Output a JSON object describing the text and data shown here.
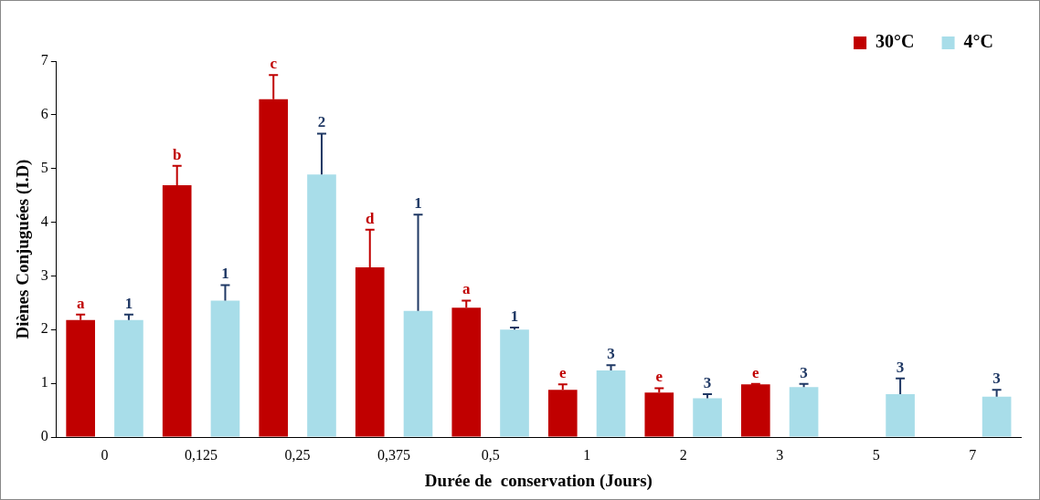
{
  "chart_data": {
    "type": "bar",
    "xlabel": "Durée de  conservation (Jours)",
    "ylabel": "Diènes Conjuguées (I.D)",
    "categories": [
      "0",
      "0,125",
      "0,25",
      "0,375",
      "0,5",
      "1",
      "2",
      "3",
      "5",
      "7"
    ],
    "series": [
      {
        "name": "30°C",
        "color": "#c00000",
        "values": [
          2.18,
          4.69,
          6.29,
          3.16,
          2.41,
          0.88,
          0.83,
          0.98,
          null,
          null
        ],
        "errors": [
          [
            2.18,
            2.28
          ],
          [
            4.69,
            5.05
          ],
          [
            6.29,
            6.74
          ],
          [
            3.16,
            3.86
          ],
          [
            2.41,
            2.54
          ],
          [
            0.88,
            0.98
          ],
          [
            0.83,
            0.91
          ],
          [
            0.98,
            0.99
          ],
          null,
          null
        ]
      },
      {
        "name": "4°C",
        "color": "#a8dde9",
        "values": [
          2.18,
          2.54,
          4.89,
          2.35,
          2.0,
          1.24,
          0.72,
          0.93,
          0.8,
          0.75
        ],
        "errors": [
          [
            2.18,
            2.28
          ],
          [
            2.54,
            2.83
          ],
          [
            4.89,
            5.65
          ],
          [
            2.35,
            4.14
          ],
          [
            2.0,
            2.04
          ],
          [
            1.24,
            1.34
          ],
          [
            0.72,
            0.8
          ],
          [
            0.93,
            0.99
          ],
          [
            0.8,
            1.09
          ],
          [
            0.75,
            0.88
          ]
        ]
      }
    ],
    "annotations": [
      "a",
      "1",
      "b",
      "1",
      "c",
      "2",
      "d",
      "1",
      "a",
      "1",
      "e",
      "3",
      "e",
      "3",
      "e",
      "3",
      "3",
      "3"
    ],
    "ylim": [
      0,
      7
    ],
    "yticks": [
      0,
      1,
      2,
      3,
      4,
      5,
      6,
      7
    ],
    "grid": false,
    "legend": "top right"
  }
}
